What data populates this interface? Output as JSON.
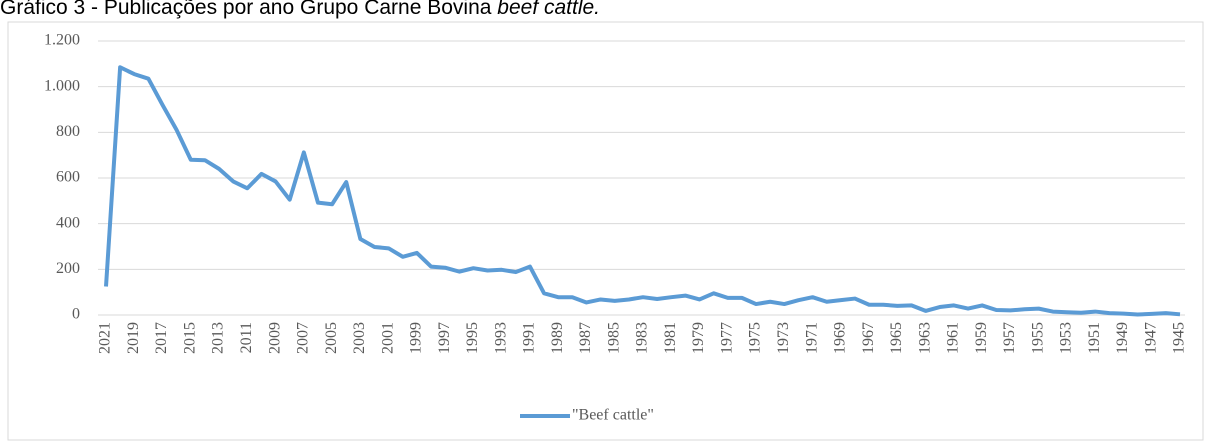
{
  "chart_data": {
    "type": "line",
    "title": "Gráfico 3 - Publicações por ano Grupo Carne Bovina",
    "title_italic": "beef cattle.",
    "categories": [
      "2021",
      null,
      "2019",
      null,
      "2017",
      null,
      "2015",
      null,
      "2013",
      null,
      "2011",
      null,
      "2009",
      null,
      "2007",
      null,
      "2005",
      null,
      "2003",
      null,
      "2001",
      null,
      "1999",
      null,
      "1997",
      null,
      "1995",
      null,
      "1993",
      null,
      "1991",
      null,
      "1989",
      null,
      "1987",
      null,
      "1985",
      null,
      "1983",
      null,
      "1981",
      null,
      "1979",
      null,
      "1977",
      null,
      "1975",
      null,
      "1973",
      null,
      "1971",
      null,
      "1969",
      null,
      "1967",
      null,
      "1965",
      null,
      "1963",
      null,
      "1961",
      null,
      "1959",
      null,
      "1957",
      null,
      "1955",
      null,
      "1953",
      null,
      "1951",
      null,
      "1949",
      null,
      "1947",
      null,
      "1945"
    ],
    "series": [
      {
        "name": "\"Beef cattle\"",
        "color": "#5b9bd5",
        "values": [
          125,
          1085,
          1055,
          1035,
          920,
          810,
          680,
          678,
          640,
          585,
          555,
          618,
          585,
          505,
          712,
          492,
          485,
          582,
          333,
          298,
          292,
          255,
          272,
          212,
          207,
          190,
          205,
          195,
          198,
          188,
          212,
          95,
          78,
          78,
          55,
          68,
          62,
          68,
          78,
          70,
          78,
          85,
          68,
          95,
          75,
          75,
          48,
          58,
          48,
          65,
          78,
          58,
          65,
          72,
          45,
          45,
          40,
          42,
          18,
          35,
          42,
          28,
          42,
          22,
          20,
          25,
          28,
          15,
          12,
          10,
          15,
          8,
          6,
          2,
          5,
          8,
          3
        ]
      }
    ],
    "ylim": [
      0,
      1200
    ],
    "yticks": [
      0,
      200,
      400,
      600,
      800,
      {
        "value": 1000,
        "label": "1.000"
      },
      {
        "value": 1200,
        "label": "1.200"
      }
    ],
    "grid": true,
    "legend": "bottom"
  }
}
